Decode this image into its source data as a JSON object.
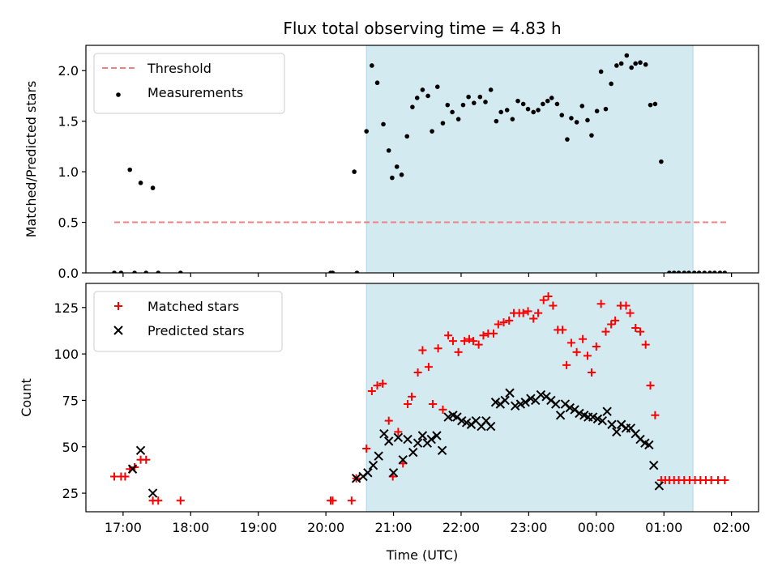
{
  "figure": {
    "title": "Flux total observing time = 4.83 h",
    "xlabel": "Time (UTC)"
  },
  "chart_data": [
    {
      "type": "scatter",
      "panel": "top",
      "ylabel": "Matched/Predicted stars",
      "xlim_hours": [
        16.45,
        26.4
      ],
      "ylim": [
        0,
        2.25
      ],
      "yticks": [
        0.0,
        0.5,
        1.0,
        1.5,
        2.0
      ],
      "ytick_labels": [
        "0.0",
        "0.5",
        "1.0",
        "1.5",
        "2.0"
      ],
      "shaded_range_hours": [
        20.6,
        25.43
      ],
      "shade_color": "#d3eaf1",
      "legend_position": "upper left",
      "threshold": {
        "name": "Threshold",
        "value": 0.5,
        "x_range_hours": [
          16.87,
          25.92
        ],
        "color": "#f08080"
      },
      "series": [
        {
          "name": "Measurements",
          "color": "#000000",
          "marker": "dot",
          "points": [
            [
              16.87,
              0
            ],
            [
              16.97,
              0
            ],
            [
              17.1,
              1.02
            ],
            [
              17.17,
              0
            ],
            [
              17.26,
              0.89
            ],
            [
              17.34,
              0
            ],
            [
              17.44,
              0.84
            ],
            [
              17.52,
              0
            ],
            [
              17.85,
              0
            ],
            [
              20.07,
              0
            ],
            [
              20.1,
              0
            ],
            [
              20.42,
              1.0
            ],
            [
              20.46,
              0
            ],
            [
              20.6,
              1.4
            ],
            [
              20.68,
              2.05
            ],
            [
              20.76,
              1.88
            ],
            [
              20.85,
              1.47
            ],
            [
              20.93,
              1.21
            ],
            [
              20.98,
              0.94
            ],
            [
              21.05,
              1.05
            ],
            [
              21.12,
              0.97
            ],
            [
              21.2,
              1.35
            ],
            [
              21.28,
              1.64
            ],
            [
              21.35,
              1.73
            ],
            [
              21.43,
              1.81
            ],
            [
              21.51,
              1.75
            ],
            [
              21.57,
              1.4
            ],
            [
              21.65,
              1.84
            ],
            [
              21.73,
              1.48
            ],
            [
              21.8,
              1.66
            ],
            [
              21.87,
              1.59
            ],
            [
              21.96,
              1.52
            ],
            [
              22.03,
              1.66
            ],
            [
              22.11,
              1.74
            ],
            [
              22.19,
              1.68
            ],
            [
              22.28,
              1.74
            ],
            [
              22.36,
              1.69
            ],
            [
              22.44,
              1.81
            ],
            [
              22.52,
              1.5
            ],
            [
              22.59,
              1.59
            ],
            [
              22.68,
              1.61
            ],
            [
              22.76,
              1.52
            ],
            [
              22.84,
              1.7
            ],
            [
              22.92,
              1.67
            ],
            [
              22.99,
              1.62
            ],
            [
              23.07,
              1.59
            ],
            [
              23.14,
              1.61
            ],
            [
              23.21,
              1.67
            ],
            [
              23.28,
              1.7
            ],
            [
              23.34,
              1.73
            ],
            [
              23.42,
              1.67
            ],
            [
              23.49,
              1.56
            ],
            [
              23.57,
              1.32
            ],
            [
              23.63,
              1.53
            ],
            [
              23.71,
              1.49
            ],
            [
              23.79,
              1.65
            ],
            [
              23.87,
              1.51
            ],
            [
              23.93,
              1.36
            ],
            [
              24.01,
              1.6
            ],
            [
              24.07,
              1.99
            ],
            [
              24.14,
              1.62
            ],
            [
              24.22,
              1.87
            ],
            [
              24.3,
              2.05
            ],
            [
              24.37,
              2.07
            ],
            [
              24.45,
              2.15
            ],
            [
              24.52,
              2.03
            ],
            [
              24.58,
              2.07
            ],
            [
              24.65,
              2.08
            ],
            [
              24.73,
              2.06
            ],
            [
              24.8,
              1.66
            ],
            [
              24.87,
              1.67
            ],
            [
              24.96,
              1.1
            ],
            [
              25.08,
              0
            ],
            [
              25.15,
              0
            ],
            [
              25.22,
              0
            ],
            [
              25.3,
              0
            ],
            [
              25.37,
              0
            ],
            [
              25.45,
              0
            ],
            [
              25.52,
              0
            ],
            [
              25.6,
              0
            ],
            [
              25.68,
              0
            ],
            [
              25.75,
              0
            ],
            [
              25.83,
              0
            ],
            [
              25.9,
              0
            ]
          ]
        }
      ]
    },
    {
      "type": "scatter",
      "panel": "bottom",
      "ylabel": "Count",
      "xlim_hours": [
        16.45,
        26.4
      ],
      "ylim": [
        15,
        138
      ],
      "yticks": [
        25,
        50,
        75,
        100,
        125
      ],
      "ytick_labels": [
        "25",
        "50",
        "75",
        "100",
        "125"
      ],
      "xticks_hours": [
        17,
        18,
        19,
        20,
        21,
        22,
        23,
        24,
        25,
        26
      ],
      "xtick_labels": [
        "17:00",
        "18:00",
        "19:00",
        "20:00",
        "21:00",
        "22:00",
        "23:00",
        "00:00",
        "01:00",
        "02:00"
      ],
      "shaded_range_hours": [
        20.6,
        25.43
      ],
      "shade_color": "#d3eaf1",
      "legend_position": "upper left",
      "series": [
        {
          "name": "Matched stars",
          "color": "#ff0000",
          "marker": "plus",
          "points": [
            [
              16.87,
              34
            ],
            [
              16.97,
              34
            ],
            [
              17.03,
              34
            ],
            [
              17.1,
              38
            ],
            [
              17.17,
              39
            ],
            [
              17.26,
              43
            ],
            [
              17.34,
              43
            ],
            [
              17.44,
              21
            ],
            [
              17.52,
              21
            ],
            [
              17.85,
              21
            ],
            [
              20.07,
              21
            ],
            [
              20.1,
              21
            ],
            [
              20.38,
              21
            ],
            [
              20.45,
              33
            ],
            [
              20.6,
              49
            ],
            [
              20.68,
              80
            ],
            [
              20.76,
              83
            ],
            [
              20.84,
              84
            ],
            [
              20.93,
              64
            ],
            [
              20.99,
              34
            ],
            [
              21.07,
              58
            ],
            [
              21.14,
              41
            ],
            [
              21.21,
              73
            ],
            [
              21.27,
              77
            ],
            [
              21.36,
              90
            ],
            [
              21.43,
              102
            ],
            [
              21.52,
              93
            ],
            [
              21.58,
              73
            ],
            [
              21.66,
              103
            ],
            [
              21.73,
              70
            ],
            [
              21.81,
              110
            ],
            [
              21.88,
              107
            ],
            [
              21.96,
              101
            ],
            [
              22.05,
              107
            ],
            [
              22.12,
              108
            ],
            [
              22.18,
              107
            ],
            [
              22.26,
              105
            ],
            [
              22.33,
              110
            ],
            [
              22.4,
              111
            ],
            [
              22.48,
              111
            ],
            [
              22.55,
              116
            ],
            [
              22.63,
              117
            ],
            [
              22.71,
              118
            ],
            [
              22.78,
              122
            ],
            [
              22.86,
              122
            ],
            [
              22.92,
              122
            ],
            [
              22.99,
              123
            ],
            [
              23.07,
              119
            ],
            [
              23.14,
              122
            ],
            [
              23.22,
              129
            ],
            [
              23.29,
              131
            ],
            [
              23.36,
              126
            ],
            [
              23.43,
              113
            ],
            [
              23.5,
              113
            ],
            [
              23.56,
              94
            ],
            [
              23.63,
              106
            ],
            [
              23.71,
              101
            ],
            [
              23.8,
              108
            ],
            [
              23.87,
              99
            ],
            [
              23.93,
              90
            ],
            [
              24.0,
              104
            ],
            [
              24.07,
              127
            ],
            [
              24.14,
              112
            ],
            [
              24.22,
              116
            ],
            [
              24.28,
              118
            ],
            [
              24.36,
              126
            ],
            [
              24.44,
              126
            ],
            [
              24.5,
              122
            ],
            [
              24.58,
              114
            ],
            [
              24.65,
              112
            ],
            [
              24.73,
              105
            ],
            [
              24.8,
              83
            ],
            [
              24.87,
              67
            ],
            [
              24.96,
              32
            ],
            [
              25.02,
              32
            ],
            [
              25.08,
              32
            ],
            [
              25.15,
              32
            ],
            [
              25.22,
              32
            ],
            [
              25.3,
              32
            ],
            [
              25.38,
              32
            ],
            [
              25.46,
              32
            ],
            [
              25.54,
              32
            ],
            [
              25.62,
              32
            ],
            [
              25.7,
              32
            ],
            [
              25.8,
              32
            ],
            [
              25.9,
              32
            ]
          ]
        },
        {
          "name": "Predicted stars",
          "color": "#000000",
          "marker": "x",
          "points": [
            [
              17.14,
              38
            ],
            [
              17.26,
              48
            ],
            [
              17.44,
              25
            ],
            [
              20.45,
              33
            ],
            [
              20.55,
              34
            ],
            [
              20.62,
              36
            ],
            [
              20.7,
              40
            ],
            [
              20.78,
              45
            ],
            [
              20.86,
              57
            ],
            [
              20.93,
              53
            ],
            [
              21.0,
              36
            ],
            [
              21.07,
              55
            ],
            [
              21.14,
              43
            ],
            [
              21.21,
              54
            ],
            [
              21.29,
              47
            ],
            [
              21.36,
              52
            ],
            [
              21.43,
              56
            ],
            [
              21.5,
              52
            ],
            [
              21.56,
              54
            ],
            [
              21.64,
              56
            ],
            [
              21.72,
              48
            ],
            [
              21.81,
              66
            ],
            [
              21.88,
              67
            ],
            [
              21.94,
              66
            ],
            [
              22.01,
              64
            ],
            [
              22.08,
              63
            ],
            [
              22.15,
              62
            ],
            [
              22.22,
              64
            ],
            [
              22.3,
              61
            ],
            [
              22.37,
              64
            ],
            [
              22.44,
              61
            ],
            [
              22.51,
              74
            ],
            [
              22.58,
              73
            ],
            [
              22.65,
              75
            ],
            [
              22.72,
              79
            ],
            [
              22.8,
              72
            ],
            [
              22.88,
              73
            ],
            [
              22.95,
              74
            ],
            [
              23.03,
              76
            ],
            [
              23.1,
              75
            ],
            [
              23.18,
              78
            ],
            [
              23.26,
              77
            ],
            [
              23.33,
              75
            ],
            [
              23.4,
              73
            ],
            [
              23.47,
              67
            ],
            [
              23.54,
              73
            ],
            [
              23.61,
              71
            ],
            [
              23.68,
              70
            ],
            [
              23.75,
              68
            ],
            [
              23.82,
              67
            ],
            [
              23.88,
              66
            ],
            [
              23.95,
              66
            ],
            [
              24.02,
              65
            ],
            [
              24.09,
              64
            ],
            [
              24.16,
              69
            ],
            [
              24.23,
              62
            ],
            [
              24.3,
              58
            ],
            [
              24.37,
              62
            ],
            [
              24.44,
              60
            ],
            [
              24.51,
              60
            ],
            [
              24.58,
              57
            ],
            [
              24.65,
              54
            ],
            [
              24.72,
              52
            ],
            [
              24.78,
              51
            ],
            [
              24.85,
              40
            ],
            [
              24.93,
              29
            ]
          ]
        }
      ]
    }
  ]
}
